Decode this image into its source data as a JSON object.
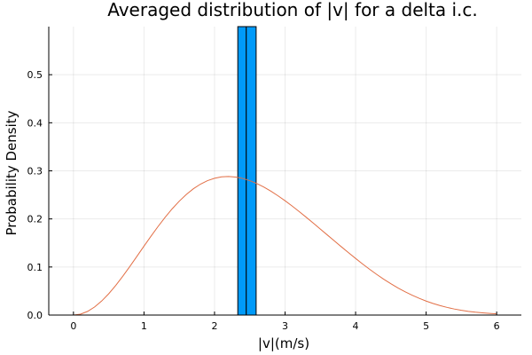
{
  "chart_data": {
    "type": "bar+line",
    "title": "Averaged distribution of |v| for a delta i.c.",
    "xlabel": "|v|(m/s)",
    "ylabel": "Probability Density",
    "xlim": [
      -0.35,
      6.35
    ],
    "ylim": [
      0,
      0.6
    ],
    "xticks": [
      0,
      1,
      2,
      3,
      4,
      5,
      6
    ],
    "yticks": [
      0.0,
      0.1,
      0.2,
      0.3,
      0.4,
      0.5
    ],
    "xtick_labels": [
      "0",
      "1",
      "2",
      "3",
      "4",
      "5",
      "6"
    ],
    "ytick_labels": [
      "0.0",
      "0.1",
      "0.2",
      "0.3",
      "0.4",
      "0.5"
    ],
    "grid": true,
    "legend": "none",
    "bars": {
      "color": "#009AF9",
      "edgecolor": "#000000",
      "bins": [
        {
          "x0": 2.33,
          "x1": 2.45,
          "value": 0.6
        },
        {
          "x0": 2.45,
          "x1": 2.59,
          "value": 0.6
        }
      ]
    },
    "line": {
      "color": "#E26F46",
      "x": [
        0.0,
        0.1,
        0.2,
        0.3,
        0.4,
        0.5,
        0.6,
        0.7,
        0.8,
        0.9,
        1.0,
        1.1,
        1.2,
        1.3,
        1.4,
        1.5,
        1.6,
        1.7,
        1.8,
        1.9,
        2.0,
        2.1,
        2.2,
        2.3,
        2.4,
        2.5,
        2.6,
        2.7,
        2.8,
        2.9,
        3.0,
        3.1,
        3.2,
        3.3,
        3.4,
        3.5,
        3.6,
        3.7,
        3.8,
        3.9,
        4.0,
        4.1,
        4.2,
        4.3,
        4.4,
        4.5,
        4.6,
        4.7,
        4.8,
        4.9,
        5.0,
        5.1,
        5.2,
        5.3,
        5.4,
        5.5,
        5.6,
        5.7,
        5.8,
        5.9,
        6.0
      ],
      "y": [
        0.0,
        0.0019,
        0.0076,
        0.0168,
        0.0292,
        0.0443,
        0.0617,
        0.0809,
        0.1012,
        0.1222,
        0.1434,
        0.1642,
        0.1844,
        0.2034,
        0.2211,
        0.2369,
        0.2509,
        0.2627,
        0.2723,
        0.2796,
        0.2846,
        0.2875,
        0.2883,
        0.2871,
        0.2842,
        0.2796,
        0.2735,
        0.2661,
        0.2576,
        0.2481,
        0.2378,
        0.2268,
        0.2153,
        0.2034,
        0.1913,
        0.1789,
        0.1665,
        0.1541,
        0.1418,
        0.1297,
        0.1178,
        0.1062,
        0.0951,
        0.0845,
        0.0745,
        0.0652,
        0.0565,
        0.0486,
        0.0414,
        0.0349,
        0.0291,
        0.024,
        0.0196,
        0.0158,
        0.0126,
        0.0099,
        0.0077,
        0.0059,
        0.0045,
        0.0034,
        0.0025
      ]
    }
  }
}
